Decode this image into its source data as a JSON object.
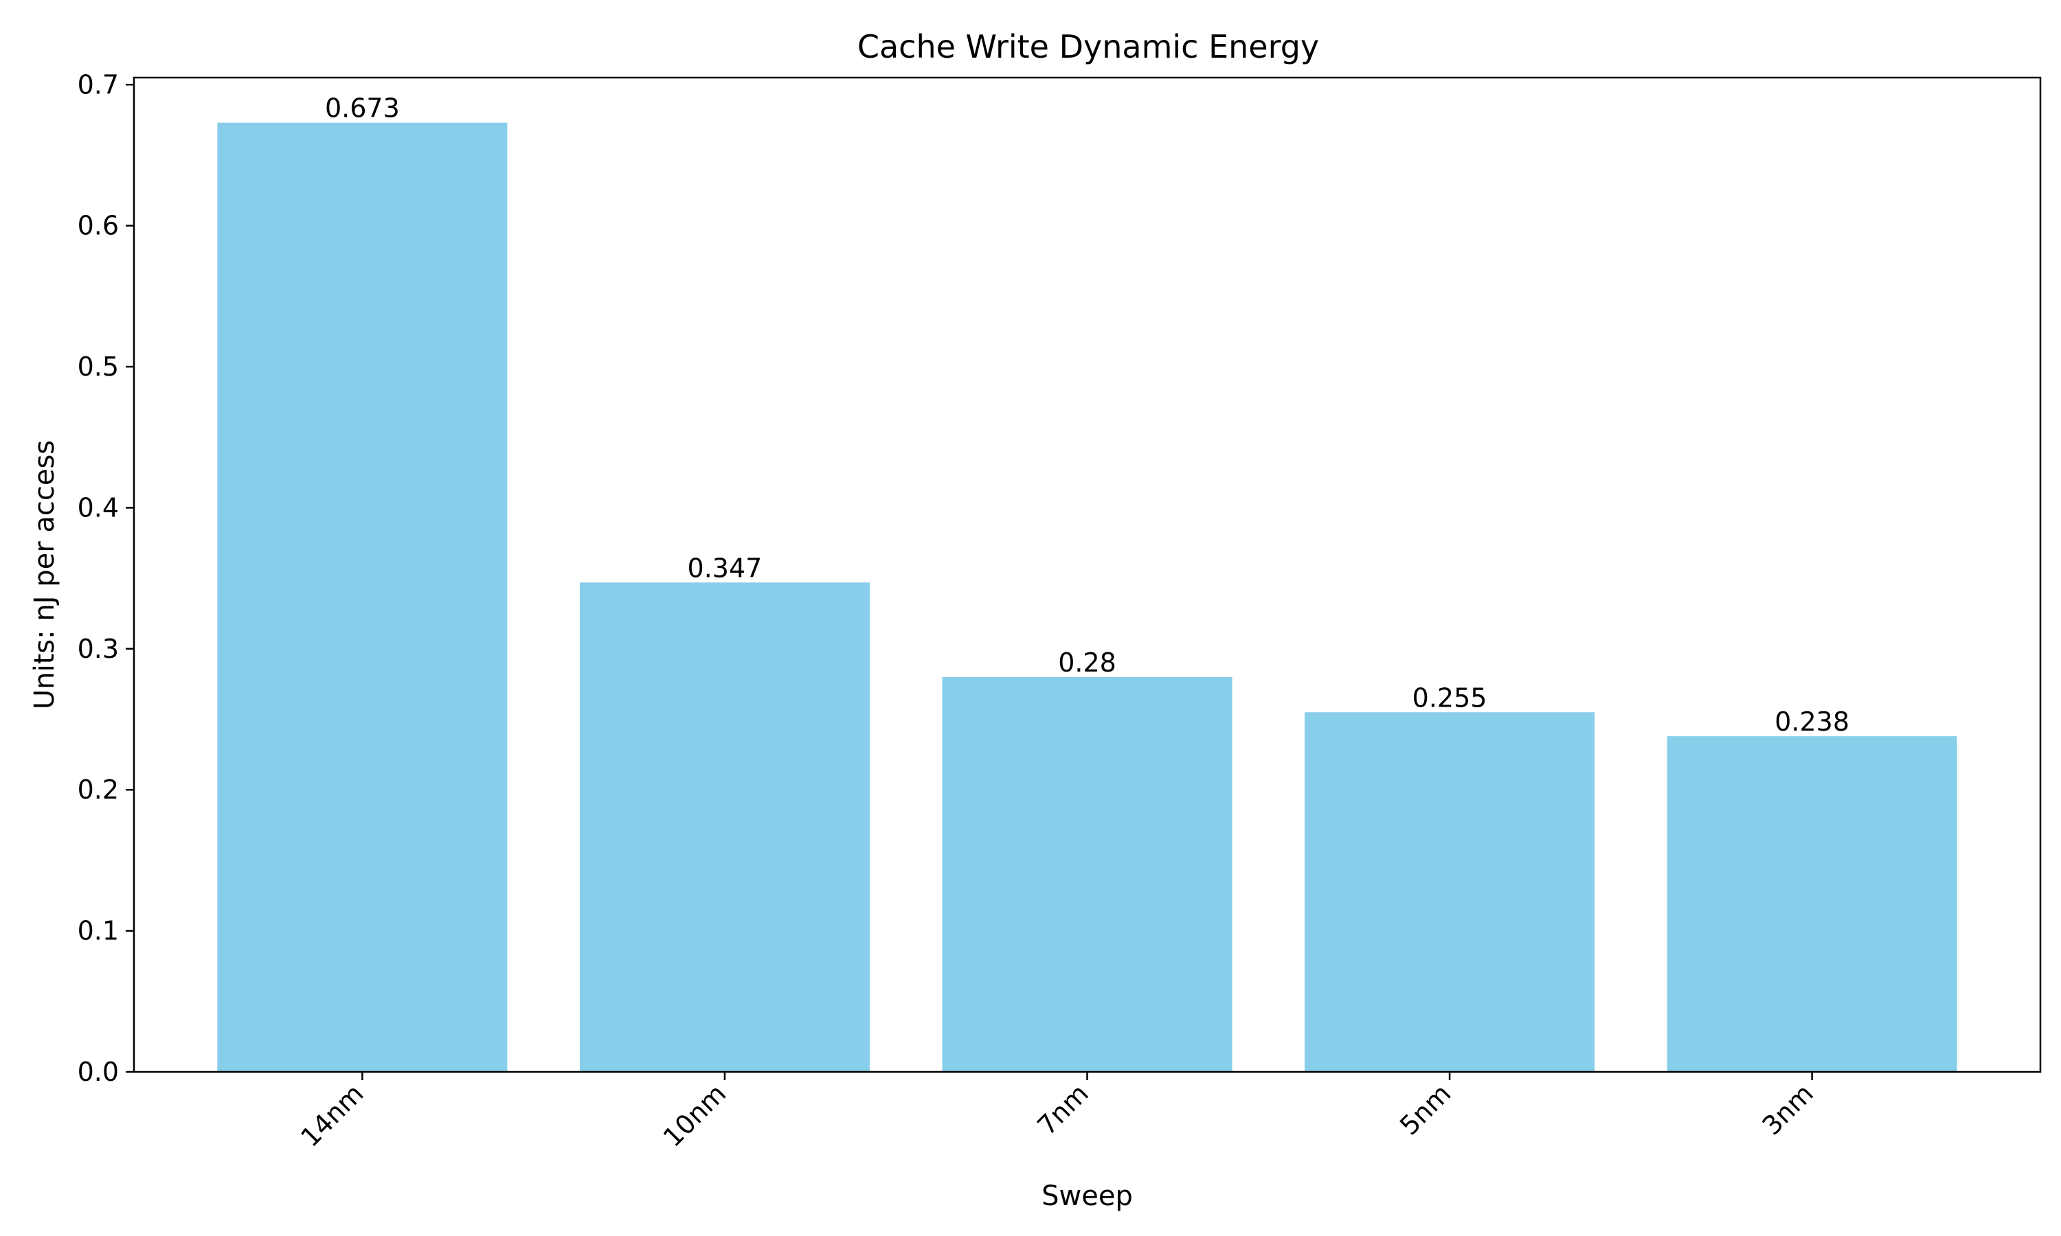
{
  "chart_data": {
    "type": "bar",
    "title": "Cache Write Dynamic Energy",
    "xlabel": "Sweep",
    "ylabel": "Units: nJ per access",
    "categories": [
      "14nm",
      "10nm",
      "7nm",
      "5nm",
      "3nm"
    ],
    "values": [
      0.673,
      0.347,
      0.28,
      0.255,
      0.238
    ],
    "value_labels": [
      "0.673",
      "0.347",
      "0.28",
      "0.255",
      "0.238"
    ],
    "ylim": [
      0,
      0.705
    ],
    "yticks": [
      0.0,
      0.1,
      0.2,
      0.3,
      0.4,
      0.5,
      0.6,
      0.7
    ],
    "ytick_labels": [
      "0.0",
      "0.1",
      "0.2",
      "0.3",
      "0.4",
      "0.5",
      "0.6",
      "0.7"
    ],
    "xtick_rotation_deg": 45,
    "grid": false,
    "legend": "none",
    "bar_color": "#87CEEB"
  }
}
